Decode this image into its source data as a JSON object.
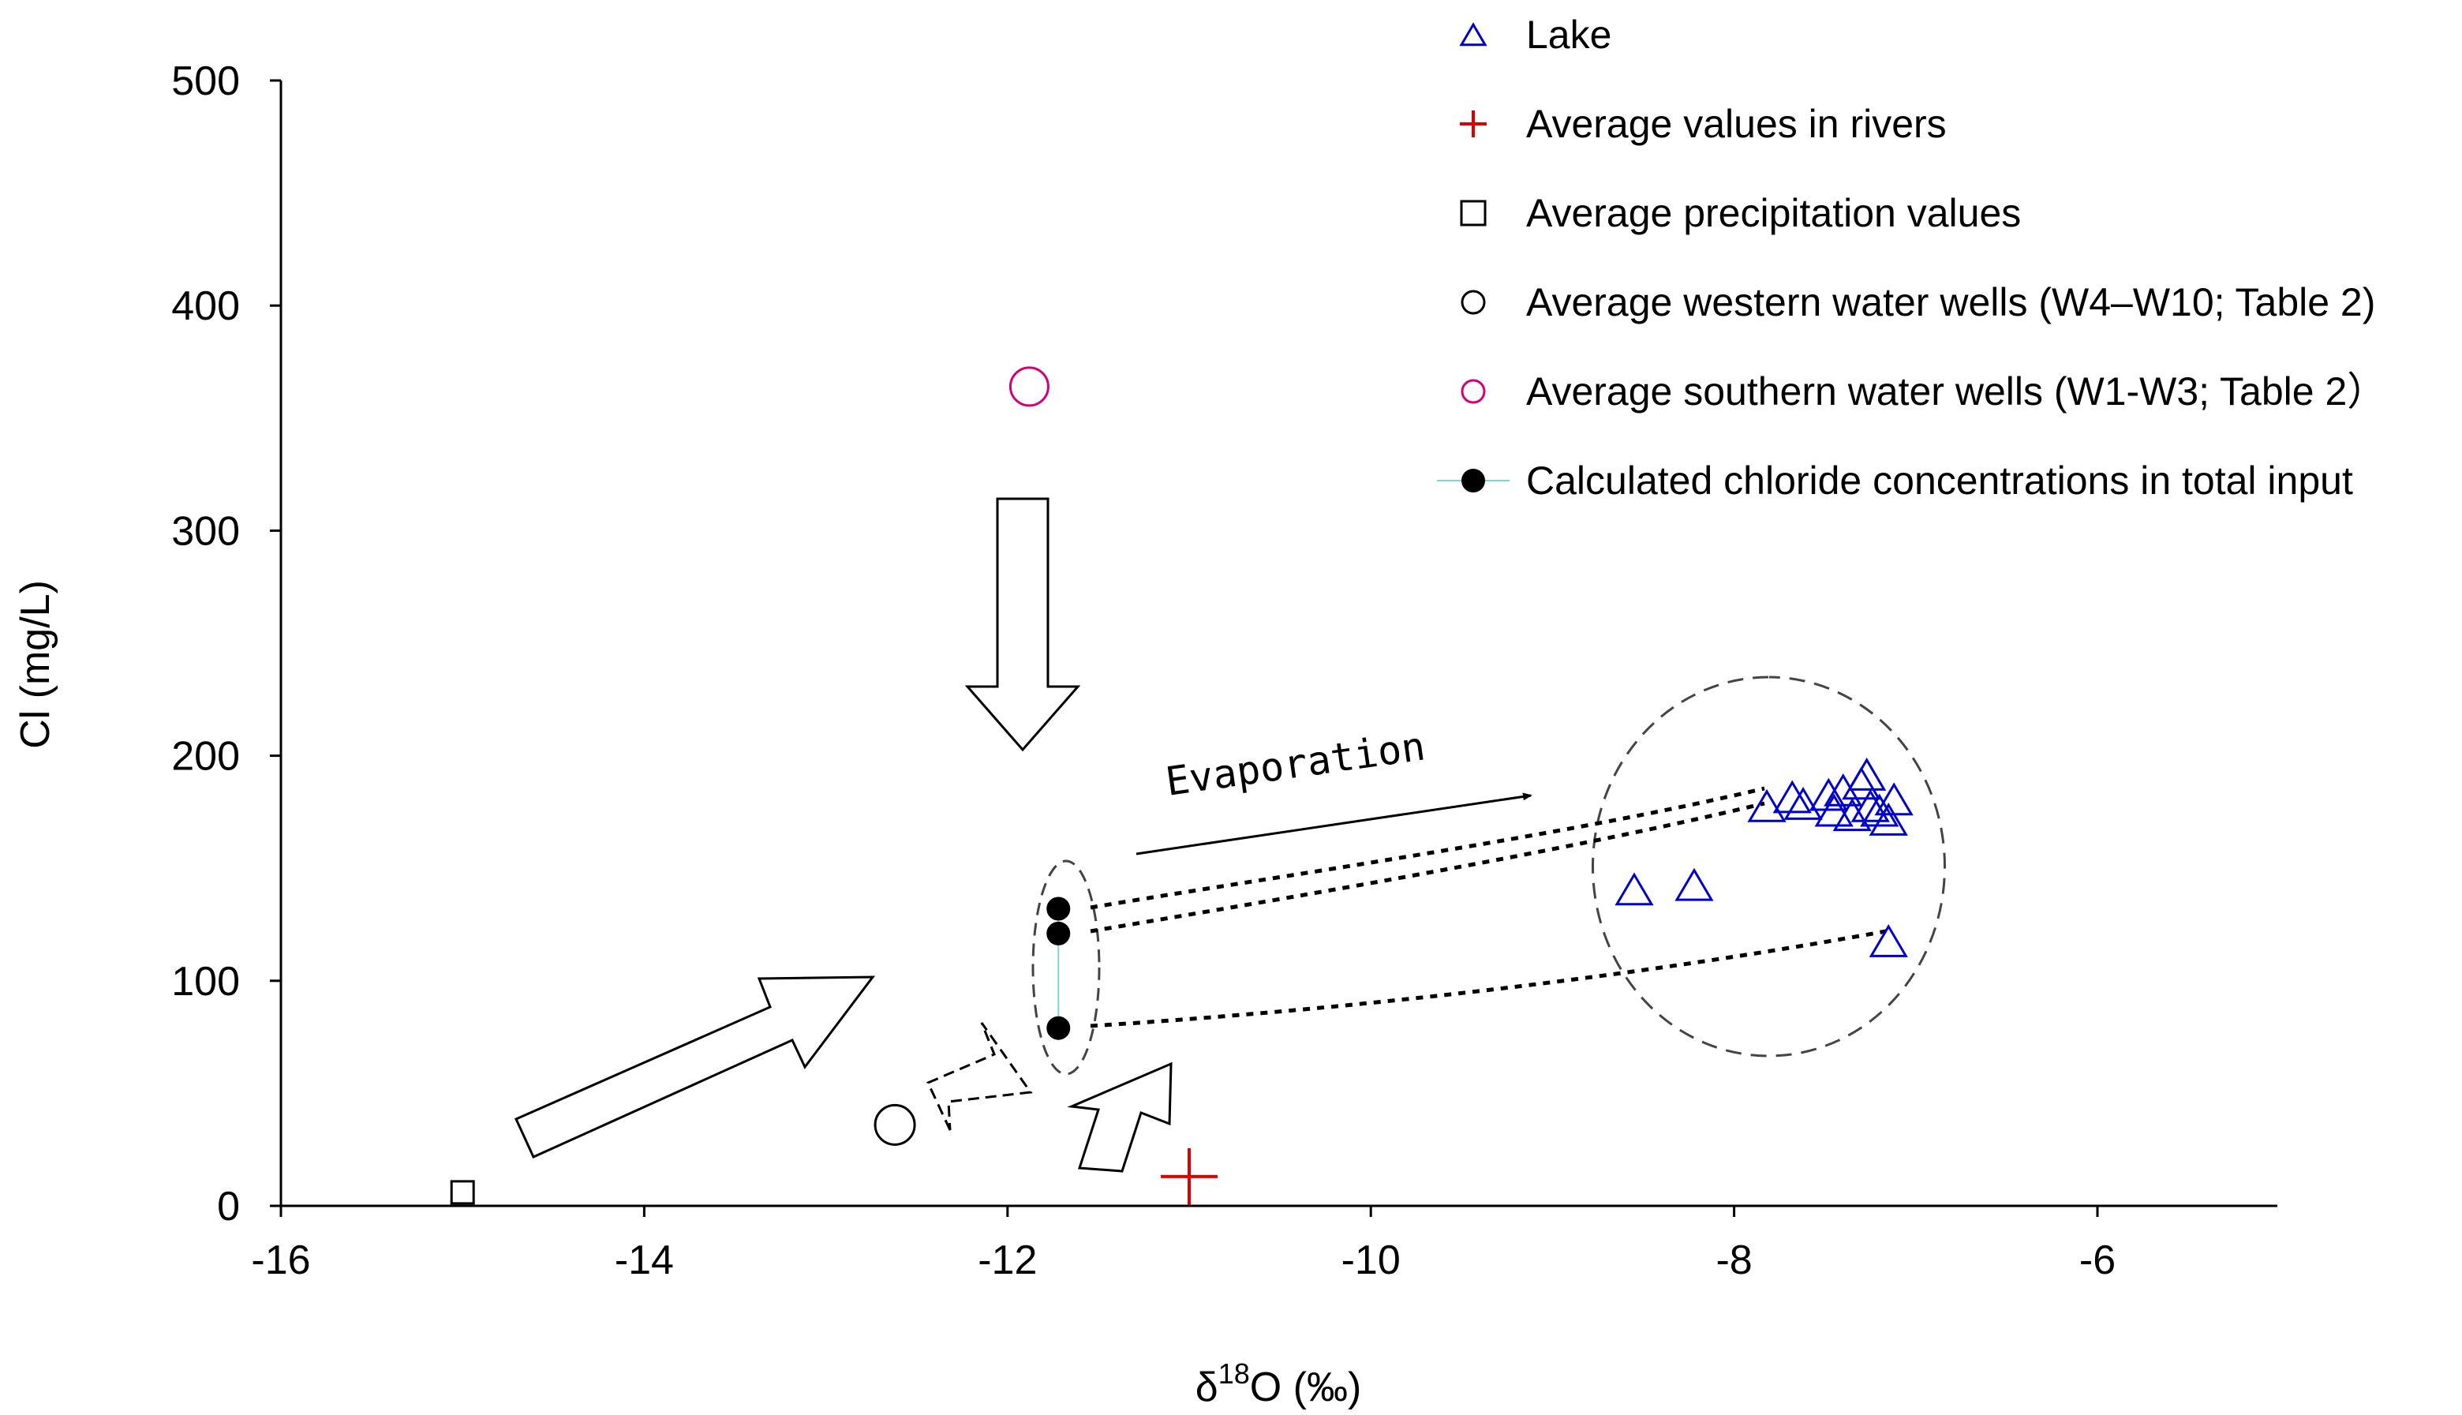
{
  "chart_data": {
    "type": "scatter",
    "title": "",
    "xlabel": "δ18O (‰)",
    "xlabel_parts": {
      "base": "δ",
      "sup": "18",
      "rest": "O (‰)"
    },
    "ylabel": "Cl (mg/L)",
    "xlim": [
      -16,
      -5
    ],
    "ylim": [
      0,
      500
    ],
    "xticks": [
      -16,
      -14,
      -12,
      -10,
      -8,
      -6
    ],
    "yticks": [
      0,
      100,
      200,
      300,
      400,
      500
    ],
    "grid": false,
    "legend_position": "top-right",
    "series": [
      {
        "name": "Lake",
        "marker": "triangle",
        "color": "#0000cc",
        "points": [
          {
            "x": -8.55,
            "y": 139
          },
          {
            "x": -8.22,
            "y": 141
          },
          {
            "x": -7.82,
            "y": 176
          },
          {
            "x": -7.68,
            "y": 180
          },
          {
            "x": -7.62,
            "y": 177
          },
          {
            "x": -7.48,
            "y": 181
          },
          {
            "x": -7.45,
            "y": 174
          },
          {
            "x": -7.4,
            "y": 183
          },
          {
            "x": -7.35,
            "y": 172
          },
          {
            "x": -7.3,
            "y": 186
          },
          {
            "x": -7.27,
            "y": 190
          },
          {
            "x": -7.25,
            "y": 176
          },
          {
            "x": -7.2,
            "y": 174
          },
          {
            "x": -7.15,
            "y": 170
          },
          {
            "x": -7.12,
            "y": 179
          },
          {
            "x": -7.15,
            "y": 116
          }
        ]
      },
      {
        "name": "Average values in rivers",
        "marker": "plus",
        "color": "#e00000",
        "points": [
          {
            "x": -11.0,
            "y": 13
          }
        ]
      },
      {
        "name": "Average precipitation values",
        "marker": "square",
        "color": "#000000",
        "points": [
          {
            "x": -15.0,
            "y": 6
          }
        ]
      },
      {
        "name": "Average western water wells (W4–W10; Table 2)",
        "marker": "circle",
        "color": "#000000",
        "points": [
          {
            "x": -12.62,
            "y": 36
          }
        ]
      },
      {
        "name": "Average southern water wells (W1-W3; Table 2）",
        "marker": "circle",
        "color": "#d4007a",
        "points": [
          {
            "x": -11.88,
            "y": 364
          }
        ]
      },
      {
        "name": "Calculated chloride concentrations in total input",
        "marker": "filled-circle",
        "color": "#000000",
        "points": [
          {
            "x": -11.72,
            "y": 132
          },
          {
            "x": -11.72,
            "y": 121
          },
          {
            "x": -11.72,
            "y": 79
          }
        ]
      }
    ],
    "annotations": [
      {
        "text": "Evaporation"
      }
    ]
  },
  "colors": {
    "axis": "#000000",
    "lake": "#0000cc",
    "river": "#e00000",
    "southern_wells": "#d4007a",
    "connector": "#7fd6d0"
  }
}
